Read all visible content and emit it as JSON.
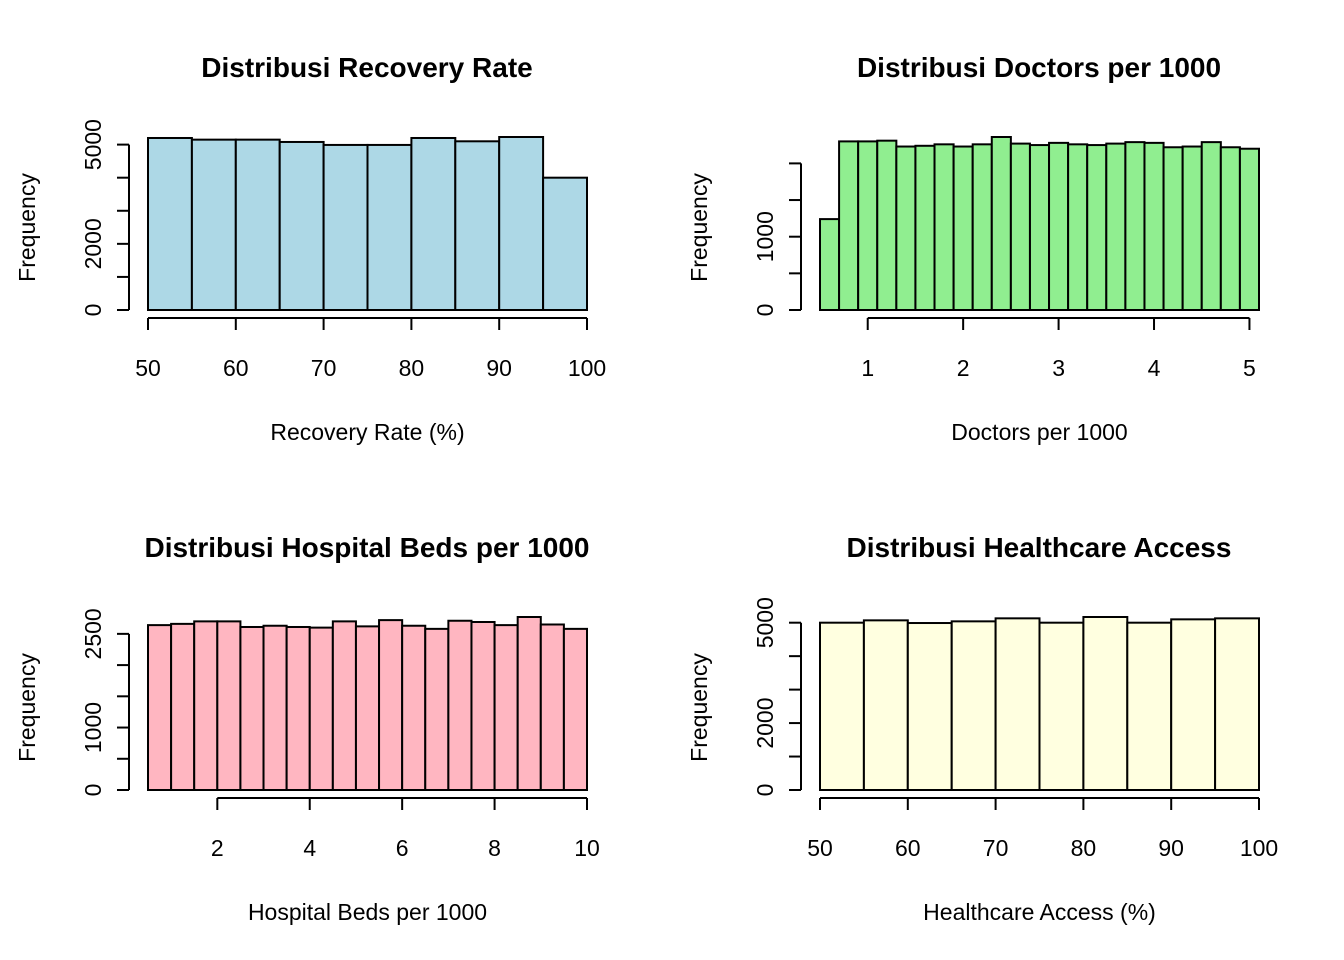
{
  "chart_data": [
    {
      "type": "bar",
      "title": "Distribusi Recovery Rate",
      "xlabel": "Recovery Rate (%)",
      "ylabel": "Frequency",
      "color": "#ADD8E6",
      "bin_edges": [
        50,
        55,
        60,
        65,
        70,
        75,
        80,
        85,
        90,
        95,
        100
      ],
      "values": [
        5200,
        5150,
        5150,
        5080,
        4990,
        4990,
        5200,
        5100,
        5230,
        4000
      ],
      "xlim": [
        50,
        100
      ],
      "ylim": [
        0,
        5230
      ],
      "xticks": [
        50,
        60,
        70,
        80,
        90,
        100
      ],
      "yticks": [
        0,
        1000,
        2000,
        3000,
        4000,
        5000
      ],
      "ytick_labels": [
        "0",
        "",
        "2000",
        "",
        "",
        "5000"
      ]
    },
    {
      "type": "bar",
      "title": "Distribusi Doctors per 1000",
      "xlabel": "Doctors per 1000",
      "ylabel": "Frequency",
      "color": "#90EE90",
      "bin_edges": [
        0.5,
        0.7,
        0.9,
        1.1,
        1.3,
        1.5,
        1.7,
        1.9,
        2.1,
        2.3,
        2.5,
        2.7,
        2.9,
        3.1,
        3.3,
        3.5,
        3.7,
        3.9,
        4.1,
        4.3,
        4.5,
        4.7,
        4.9,
        5.1
      ],
      "values": [
        1240,
        2300,
        2300,
        2310,
        2230,
        2240,
        2260,
        2230,
        2260,
        2360,
        2270,
        2250,
        2280,
        2260,
        2250,
        2270,
        2290,
        2280,
        2220,
        2230,
        2290,
        2220,
        2200
      ],
      "xlim": [
        0.5,
        5.1
      ],
      "ylim": [
        0,
        2360
      ],
      "xticks": [
        1,
        2,
        3,
        4,
        5
      ],
      "yticks": [
        0,
        500,
        1000,
        1500,
        2000
      ],
      "ytick_labels": [
        "0",
        "",
        "1000",
        "",
        ""
      ]
    },
    {
      "type": "bar",
      "title": "Distribusi Hospital Beds per 1000",
      "xlabel": "Hospital Beds per 1000",
      "ylabel": "Frequency",
      "color": "#FFB6C1",
      "bin_edges": [
        0.5,
        1.0,
        1.5,
        2.0,
        2.5,
        3.0,
        3.5,
        4.0,
        4.5,
        5.0,
        5.5,
        6.0,
        6.5,
        7.0,
        7.5,
        8.0,
        8.5,
        9.0,
        9.5,
        10.0
      ],
      "values": [
        2640,
        2660,
        2700,
        2700,
        2610,
        2630,
        2610,
        2600,
        2700,
        2620,
        2720,
        2630,
        2580,
        2710,
        2690,
        2640,
        2770,
        2650,
        2580
      ],
      "xlim": [
        0.5,
        10.0
      ],
      "ylim": [
        0,
        2770
      ],
      "xticks": [
        2,
        4,
        6,
        8,
        10
      ],
      "yticks": [
        0,
        500,
        1000,
        1500,
        2000,
        2500
      ],
      "ytick_labels": [
        "0",
        "",
        "1000",
        "",
        "",
        "2500"
      ]
    },
    {
      "type": "bar",
      "title": "Distribusi Healthcare Access",
      "xlabel": "Healthcare Access (%)",
      "ylabel": "Frequency",
      "color": "#FFFFE0",
      "bin_edges": [
        50,
        55,
        60,
        65,
        70,
        75,
        80,
        85,
        90,
        95,
        100
      ],
      "values": [
        5000,
        5070,
        4990,
        5040,
        5130,
        5000,
        5170,
        5000,
        5100,
        5130
      ],
      "xlim": [
        50,
        100
      ],
      "ylim": [
        0,
        5170
      ],
      "xticks": [
        50,
        60,
        70,
        80,
        90,
        100
      ],
      "yticks": [
        0,
        1000,
        2000,
        3000,
        4000,
        5000
      ],
      "ytick_labels": [
        "0",
        "",
        "2000",
        "",
        "",
        "5000"
      ]
    }
  ]
}
